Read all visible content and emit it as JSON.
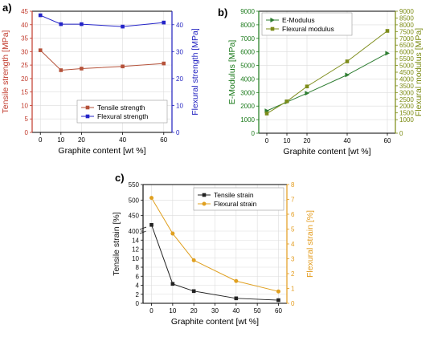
{
  "chart_data": [
    {
      "panel_label": "a)",
      "type": "line",
      "xlabel": "Graphite content [wt %]",
      "x": [
        0,
        10,
        20,
        40,
        60
      ],
      "xticks": [
        0,
        10,
        20,
        40,
        60
      ],
      "xlim": [
        -4,
        64
      ],
      "ylabel_left": "Tensile strength [MPa]",
      "ylabel_right": "Flexural strength [MPa]",
      "ylim_left": [
        0,
        45
      ],
      "ylim_right": [
        0,
        45
      ],
      "yticks_left": [
        "0",
        "5",
        "10",
        "15",
        "20",
        "25",
        "30",
        "35",
        "40",
        "45"
      ],
      "yticks_right": [
        "0",
        "10",
        "20",
        "30",
        "40"
      ],
      "legend_position": "bottom-right",
      "series": [
        {
          "name": "Tensile strength",
          "axis": "left",
          "color": "#b5523a",
          "marker": "square",
          "values": [
            30.5,
            23.1,
            23.7,
            24.5,
            25.6
          ]
        },
        {
          "name": "Flexural strength",
          "axis": "right",
          "color": "#2424c8",
          "marker": "square",
          "values": [
            43.5,
            40.2,
            40.2,
            39.3,
            40.8
          ]
        }
      ],
      "colors": {
        "left_axis": "#c0392b",
        "right_axis": "#1f1fbf"
      }
    },
    {
      "panel_label": "b)",
      "type": "line",
      "xlabel": "Graphite content [wt %]",
      "x": [
        0,
        10,
        20,
        40,
        60
      ],
      "xticks": [
        0,
        10,
        20,
        40,
        60
      ],
      "xlim": [
        -4,
        64
      ],
      "ylabel_left": "E-Modulus [MPa]",
      "ylabel_right": "Flexural modulus [MPa]",
      "ylim_left": [
        0,
        9000
      ],
      "ylim_right": [
        0,
        9000
      ],
      "yticks_left": [
        "0",
        "1000",
        "2000",
        "3000",
        "4000",
        "5000",
        "6000",
        "7000",
        "8000",
        "9000"
      ],
      "yticks_right": [
        "0",
        "1000",
        "1500",
        "2000",
        "2500",
        "3000",
        "3500",
        "4000",
        "4500",
        "5000",
        "5500",
        "6000",
        "6500",
        "7000",
        "7500",
        "8000",
        "8500",
        "9000"
      ],
      "legend_position": "top-left",
      "series": [
        {
          "name": "E-Modulus",
          "axis": "left",
          "color": "#2e7d32",
          "marker": "triangle-right",
          "values": [
            1650,
            2300,
            2950,
            4300,
            5900
          ]
        },
        {
          "name": "Flexural modulus",
          "axis": "right",
          "color": "#7d8c1a",
          "marker": "square",
          "values": [
            1450,
            2350,
            3450,
            5300,
            7550
          ]
        }
      ],
      "colors": {
        "left_axis": "#1b7a1b",
        "right_axis": "#7a8a10"
      }
    },
    {
      "panel_label": "c)",
      "type": "line",
      "xlabel": "Graphite content [wt %]",
      "x": [
        0,
        10,
        20,
        40,
        60
      ],
      "xticks": [
        0,
        10,
        20,
        30,
        40,
        50,
        60
      ],
      "xlim": [
        -4,
        64
      ],
      "ylabel_left": "Tensile strain [%]",
      "ylabel_right": "Flexural strain [%]",
      "y_axis_break": {
        "lower_range": [
          0,
          16
        ],
        "upper_range": [
          400,
          550
        ]
      },
      "yticks_left_lower": [
        "0",
        "2",
        "4",
        "6",
        "8",
        "10",
        "12",
        "14"
      ],
      "yticks_left_upper": [
        "400",
        "450",
        "500",
        "550"
      ],
      "ylim_right": [
        0,
        8
      ],
      "yticks_right": [
        "0",
        "1",
        "2",
        "3",
        "4",
        "5",
        "6",
        "7",
        "8"
      ],
      "legend_position": "top-right",
      "series": [
        {
          "name": "Tensile strain",
          "axis": "left",
          "color": "#222222",
          "marker": "square",
          "values": [
            420,
            4.3,
            2.7,
            1.1,
            0.7
          ]
        },
        {
          "name": "Flexural strain",
          "axis": "right",
          "color": "#e0a020",
          "marker": "circle",
          "values": [
            7.1,
            4.7,
            2.9,
            1.5,
            0.8
          ]
        }
      ],
      "colors": {
        "left_axis": "#111111",
        "right_axis": "#e39b1c"
      }
    }
  ]
}
